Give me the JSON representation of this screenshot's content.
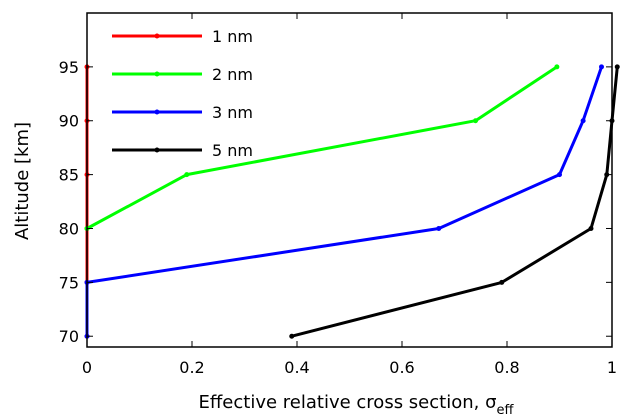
{
  "chart_data": {
    "type": "line",
    "xlabel": "Effective relative cross section, σ",
    "xlabel_subscript": "eff",
    "ylabel": "Altitude [km]",
    "xlim": [
      0,
      1
    ],
    "ylim": [
      69,
      100
    ],
    "xticks": [
      0,
      0.2,
      0.4,
      0.6,
      0.8,
      1
    ],
    "xtick_labels": [
      "0",
      "0.2",
      "0.4",
      "0.6",
      "0.8",
      "1"
    ],
    "yticks": [
      70,
      75,
      80,
      85,
      90,
      95
    ],
    "ytick_labels": [
      "70",
      "75",
      "80",
      "85",
      "90",
      "95"
    ],
    "grid": false,
    "legend_position": "top-left",
    "series": [
      {
        "name": "1 nm",
        "color": "#ff0000",
        "points": [
          [
            0,
            70
          ],
          [
            0,
            75
          ],
          [
            0,
            80
          ],
          [
            0,
            85
          ],
          [
            0,
            90
          ],
          [
            0,
            95
          ]
        ]
      },
      {
        "name": "2 nm",
        "color": "#00ff00",
        "points": [
          [
            0,
            80
          ],
          [
            0.19,
            85
          ],
          [
            0.74,
            90
          ],
          [
            0.895,
            95
          ]
        ]
      },
      {
        "name": "3 nm",
        "color": "#0000ff",
        "points": [
          [
            0,
            70
          ],
          [
            0,
            75
          ],
          [
            0.67,
            80
          ],
          [
            0.9,
            85
          ],
          [
            0.945,
            90
          ],
          [
            0.98,
            95
          ]
        ]
      },
      {
        "name": "5 nm",
        "color": "#000000",
        "points": [
          [
            0.39,
            70
          ],
          [
            0.79,
            75
          ],
          [
            0.96,
            80
          ],
          [
            0.99,
            85
          ],
          [
            1.0,
            90
          ],
          [
            1.01,
            95
          ]
        ]
      }
    ]
  }
}
